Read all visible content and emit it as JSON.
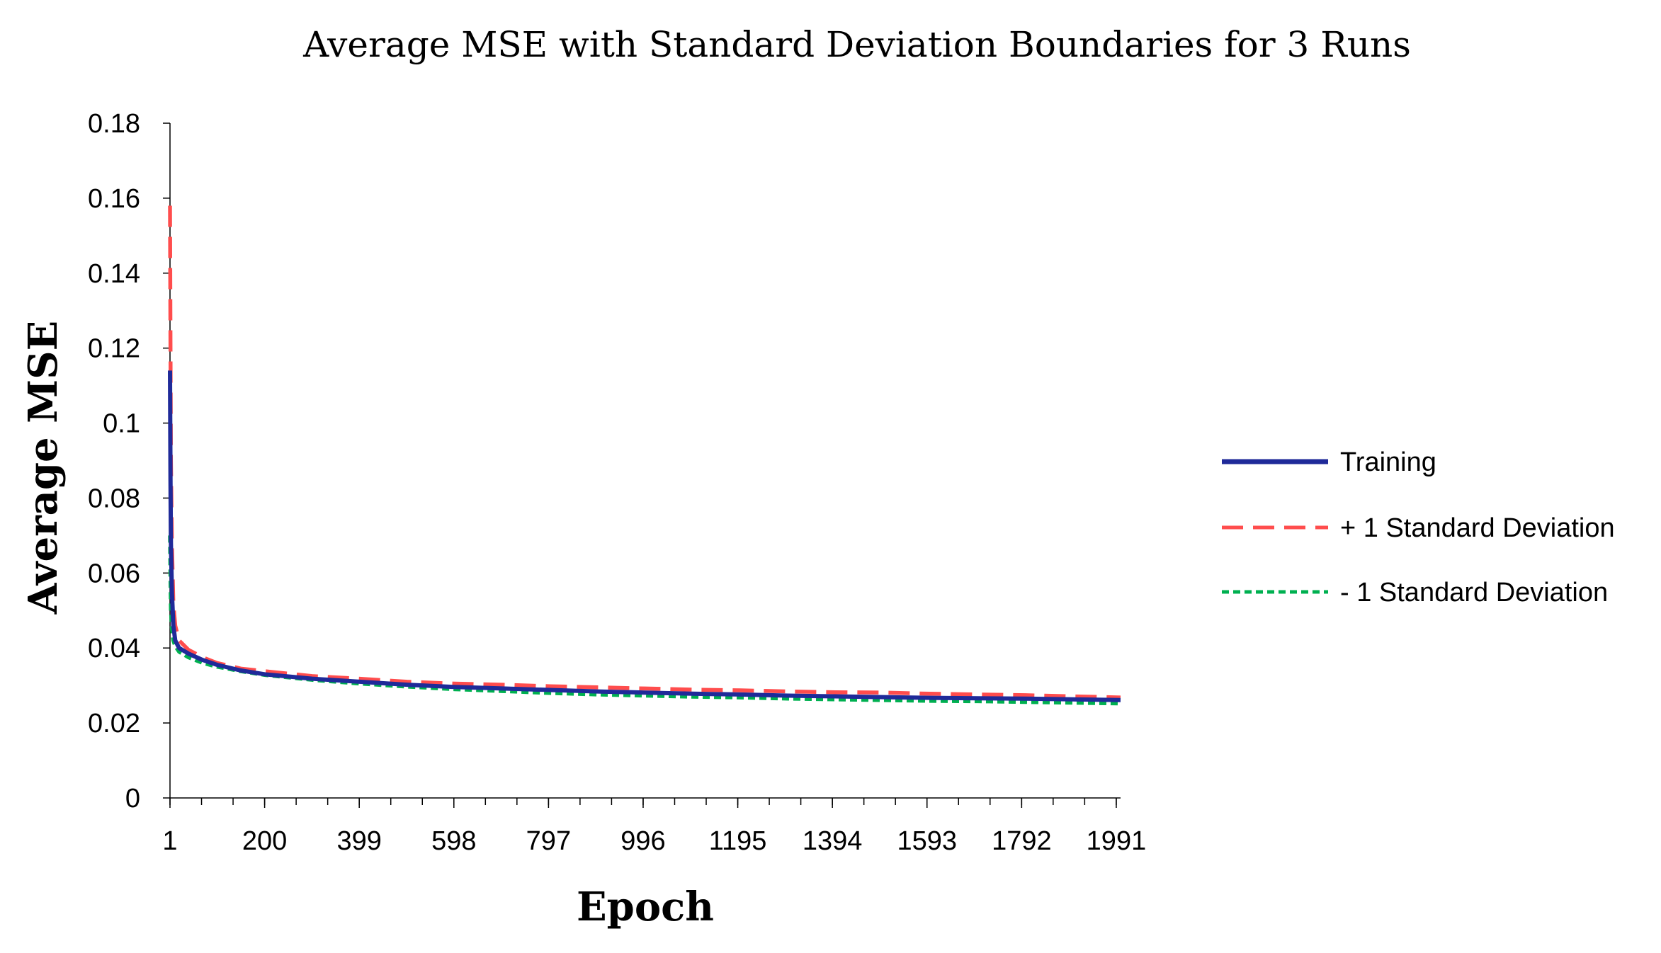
{
  "chart_data": {
    "type": "line",
    "title": "Average MSE with Standard Deviation Boundaries for 3 Runs",
    "xlabel": "Epoch",
    "ylabel": "Average MSE",
    "xlim": [
      1,
      2000
    ],
    "ylim": [
      0,
      0.18
    ],
    "yticks": [
      0,
      0.02,
      0.04,
      0.06,
      0.08,
      0.1,
      0.12,
      0.14,
      0.16,
      0.18
    ],
    "ytick_labels": [
      "0",
      "0.02",
      "0.04",
      "0.06",
      "0.08",
      "0.1",
      "0.12",
      "0.14",
      "0.16",
      "0.18"
    ],
    "xticks": [
      1,
      200,
      399,
      598,
      797,
      996,
      1195,
      1394,
      1593,
      1792,
      1991
    ],
    "xtick_labels": [
      "1",
      "200",
      "399",
      "598",
      "797",
      "996",
      "1195",
      "1394",
      "1593",
      "1792",
      "1991"
    ],
    "legend_position": "right",
    "series": [
      {
        "name": "Training",
        "color": "#1f2a99",
        "style": "solid",
        "x": [
          1,
          2,
          3,
          5,
          8,
          12,
          20,
          40,
          70,
          100,
          150,
          200,
          300,
          400,
          500,
          600,
          700,
          800,
          900,
          1000,
          1100,
          1200,
          1300,
          1400,
          1500,
          1600,
          1700,
          1800,
          1900,
          2000
        ],
        "y": [
          0.114,
          0.085,
          0.068,
          0.055,
          0.046,
          0.042,
          0.04,
          0.0385,
          0.0368,
          0.0355,
          0.034,
          0.033,
          0.0318,
          0.031,
          0.0302,
          0.0296,
          0.0292,
          0.0288,
          0.0284,
          0.0281,
          0.0278,
          0.0276,
          0.0273,
          0.0271,
          0.0269,
          0.0267,
          0.0266,
          0.0265,
          0.0263,
          0.0261
        ]
      },
      {
        "name": "+ 1 Standard Deviation",
        "color": "#ff4d4d",
        "style": "dashed",
        "x": [
          1,
          2,
          3,
          5,
          8,
          12,
          20,
          40,
          70,
          100,
          150,
          200,
          300,
          400,
          500,
          600,
          700,
          800,
          900,
          1000,
          1100,
          1200,
          1300,
          1400,
          1500,
          1600,
          1700,
          1800,
          1900,
          2000
        ],
        "y": [
          0.158,
          0.12,
          0.09,
          0.068,
          0.052,
          0.046,
          0.042,
          0.0395,
          0.0375,
          0.036,
          0.0345,
          0.0338,
          0.0325,
          0.0318,
          0.031,
          0.0305,
          0.0302,
          0.0298,
          0.0295,
          0.0292,
          0.0289,
          0.0287,
          0.0284,
          0.0282,
          0.0281,
          0.0278,
          0.0276,
          0.0274,
          0.0271,
          0.0268
        ]
      },
      {
        "name": "- 1 Standard Deviation",
        "color": "#00b050",
        "style": "dotted",
        "x": [
          1,
          2,
          3,
          5,
          8,
          12,
          20,
          40,
          70,
          100,
          150,
          200,
          300,
          400,
          500,
          600,
          700,
          800,
          900,
          1000,
          1100,
          1200,
          1300,
          1400,
          1500,
          1600,
          1700,
          1800,
          1900,
          2000
        ],
        "y": [
          0.07,
          0.058,
          0.05,
          0.045,
          0.042,
          0.0405,
          0.039,
          0.0375,
          0.036,
          0.035,
          0.0338,
          0.0328,
          0.0315,
          0.0305,
          0.0297,
          0.029,
          0.0285,
          0.028,
          0.0276,
          0.0273,
          0.027,
          0.0268,
          0.0265,
          0.0263,
          0.0261,
          0.0259,
          0.0258,
          0.0256,
          0.0254,
          0.0252
        ]
      }
    ]
  }
}
